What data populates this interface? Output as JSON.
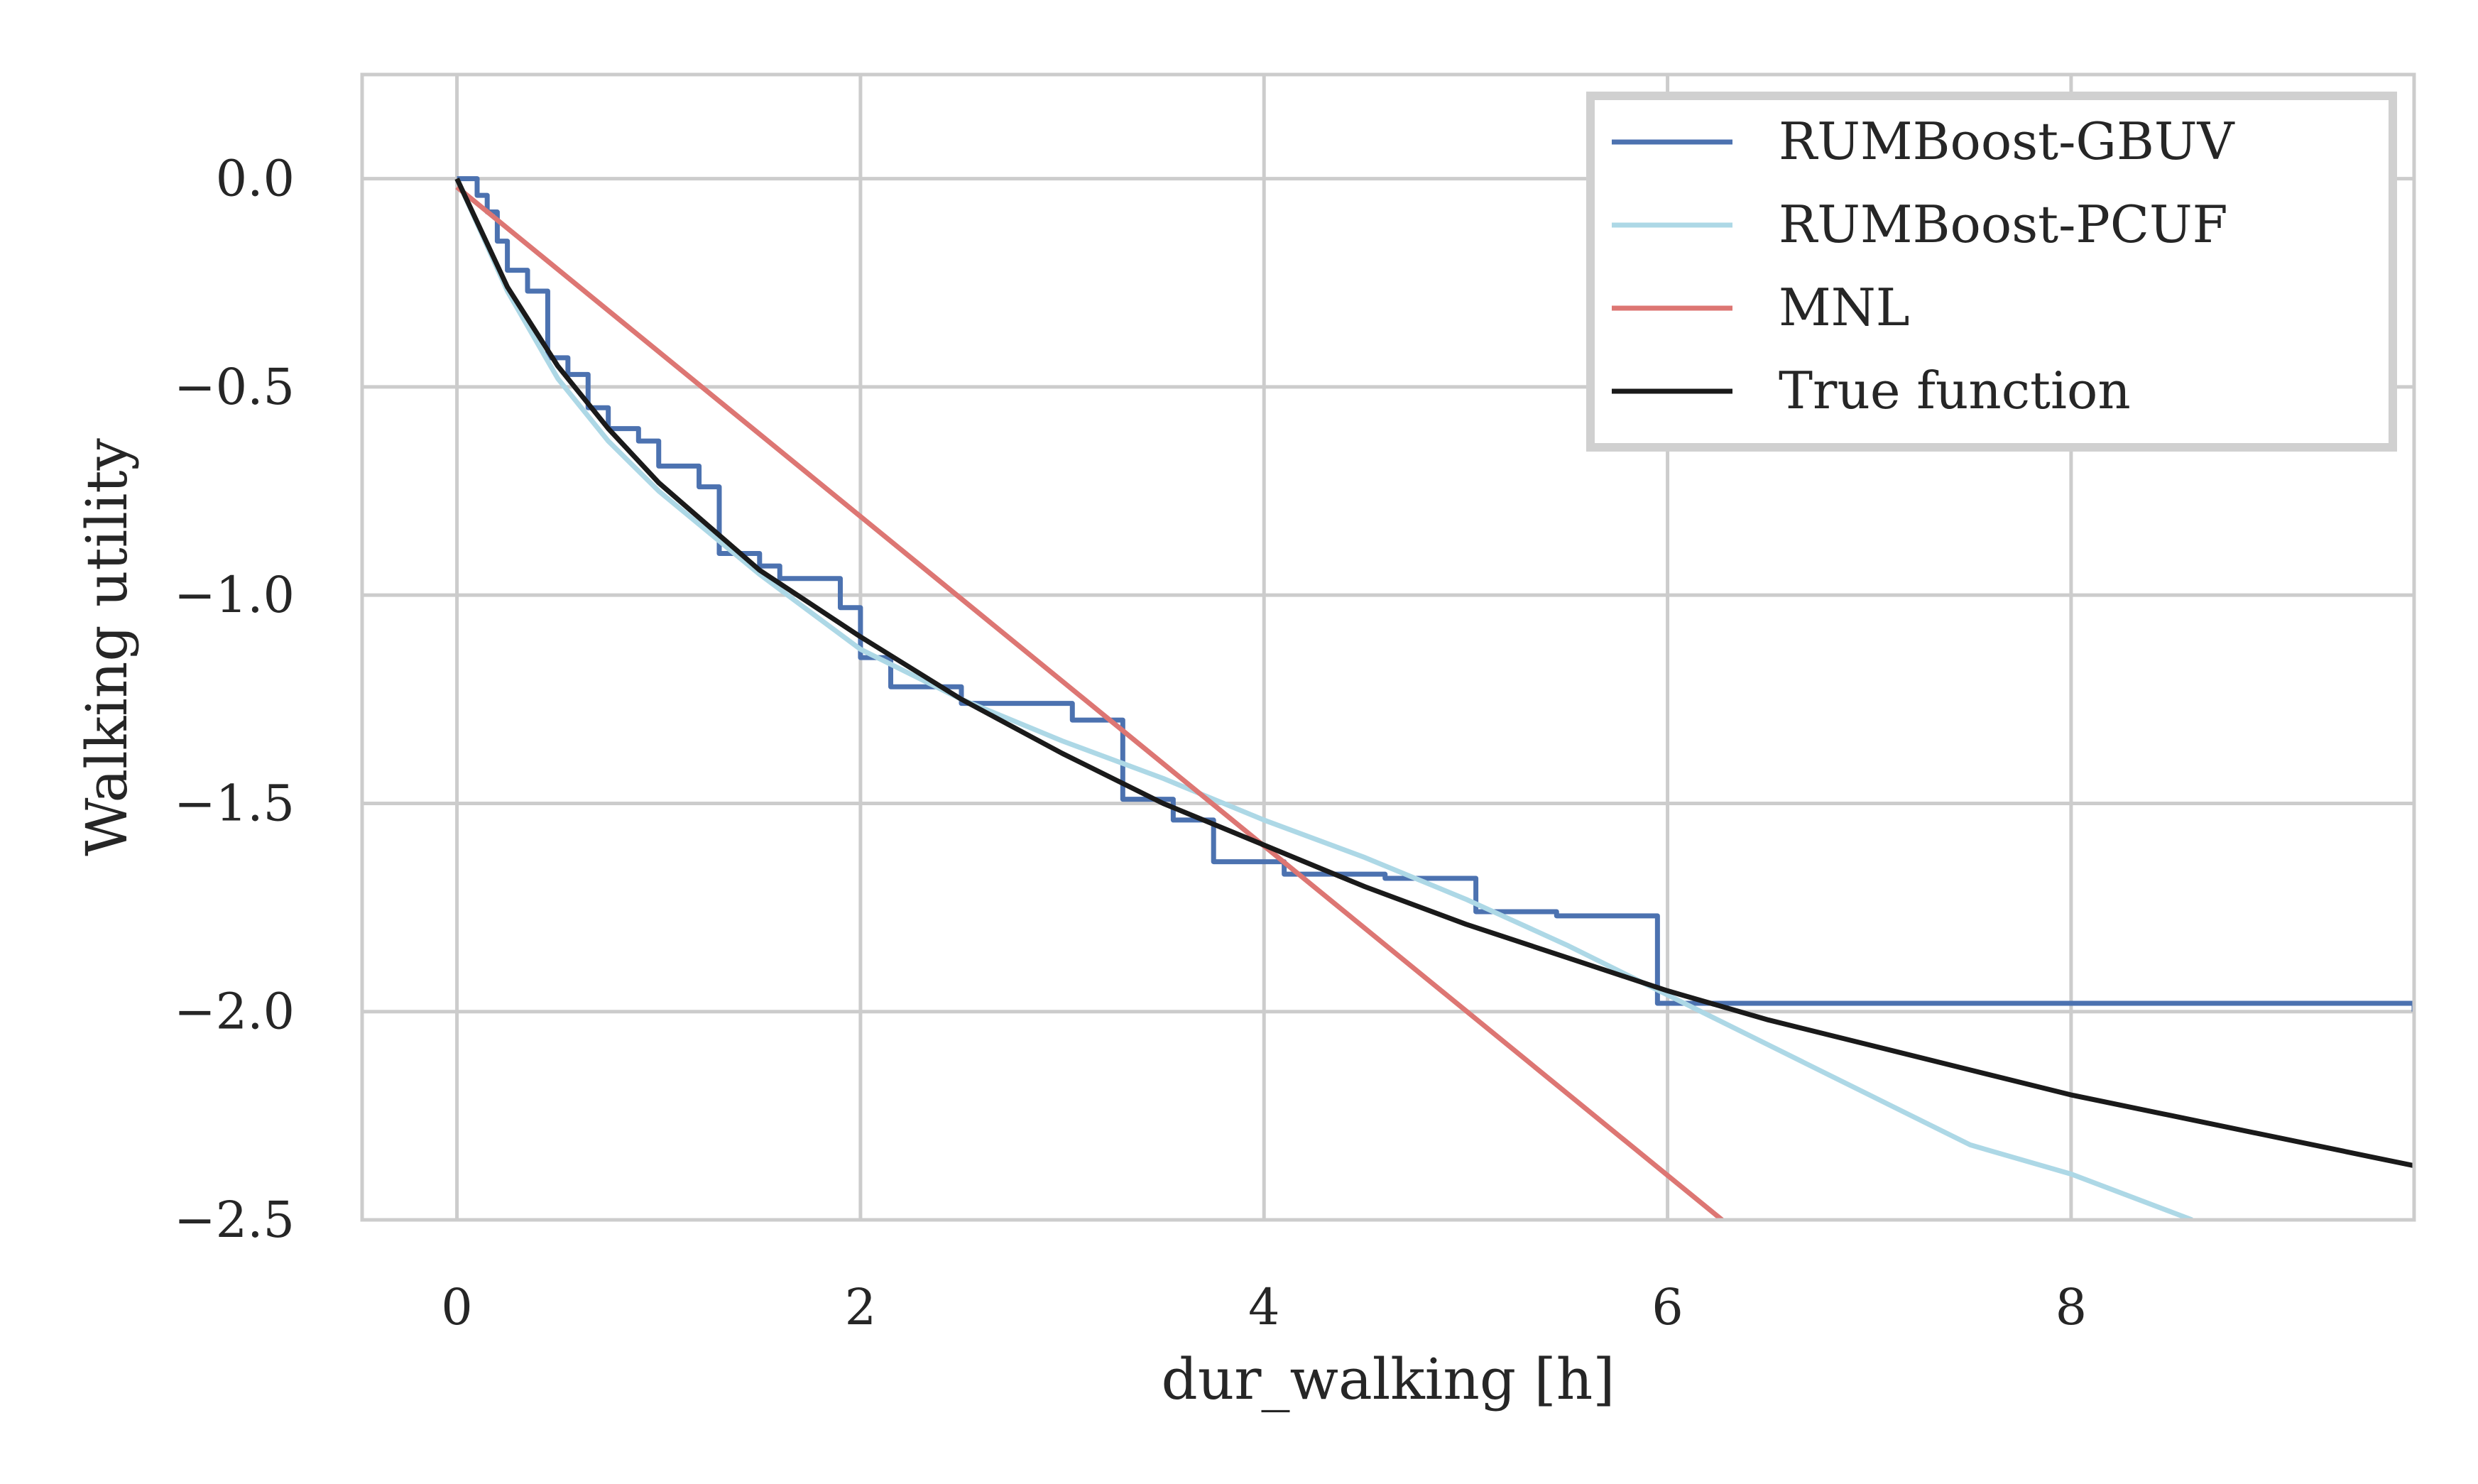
{
  "chart_data": {
    "type": "line",
    "title": "",
    "xlabel": "dur_walking [h]",
    "ylabel": "Walking utility",
    "xlim": [
      -0.47,
      9.7
    ],
    "ylim": [
      -2.5,
      0.25
    ],
    "x_ticks": [
      0,
      2,
      4,
      6,
      8
    ],
    "x_tick_labels": [
      "0",
      "2",
      "4",
      "6",
      "8"
    ],
    "y_ticks": [
      0.0,
      -0.5,
      -1.0,
      -1.5,
      -2.0,
      -2.5
    ],
    "y_tick_labels": [
      "0.0",
      "−0.5",
      "−1.0",
      "−1.5",
      "−2.0",
      "−2.5"
    ],
    "grid": true,
    "legend_position": "top-right",
    "series": [
      {
        "name": "RUMBoost-GBUV",
        "color": "#4c72b0",
        "step": true,
        "x": [
          0.0,
          0.1,
          0.15,
          0.2,
          0.25,
          0.35,
          0.45,
          0.55,
          0.65,
          0.75,
          0.9,
          1.0,
          1.2,
          1.3,
          1.5,
          1.6,
          1.9,
          2.0,
          2.15,
          2.5,
          3.05,
          3.3,
          3.55,
          3.75,
          4.1,
          4.6,
          5.05,
          5.45,
          5.95,
          9.7
        ],
        "y": [
          0.0,
          -0.04,
          -0.08,
          -0.15,
          -0.22,
          -0.27,
          -0.43,
          -0.47,
          -0.55,
          -0.6,
          -0.63,
          -0.69,
          -0.74,
          -0.9,
          -0.93,
          -0.96,
          -1.03,
          -1.15,
          -1.22,
          -1.26,
          -1.3,
          -1.49,
          -1.54,
          -1.64,
          -1.67,
          -1.68,
          -1.76,
          -1.77,
          -1.98,
          -2.0
        ]
      },
      {
        "name": "RUMBoost-PCUF",
        "color": "#add8e6",
        "step": false,
        "x": [
          0.0,
          0.25,
          0.5,
          0.75,
          1.0,
          1.5,
          2.0,
          2.5,
          3.0,
          3.5,
          4.0,
          4.5,
          5.0,
          5.5,
          6.0,
          6.5,
          7.0,
          7.5,
          8.0,
          8.6
        ],
        "y": [
          0.0,
          -0.27,
          -0.48,
          -0.63,
          -0.75,
          -0.95,
          -1.13,
          -1.25,
          -1.35,
          -1.44,
          -1.54,
          -1.63,
          -1.73,
          -1.84,
          -1.96,
          -2.08,
          -2.2,
          -2.32,
          -2.39,
          -2.5
        ]
      },
      {
        "name": "MNL",
        "color": "#dd7673",
        "step": false,
        "x": [
          0.0,
          6.27
        ],
        "y": [
          -0.02,
          -2.5
        ]
      },
      {
        "name": "True function",
        "color": "#1a1a1a",
        "step": false,
        "x": [
          0.0,
          0.25,
          0.5,
          0.75,
          1.0,
          1.5,
          2.0,
          2.5,
          3.0,
          3.5,
          4.0,
          4.5,
          5.0,
          5.5,
          6.0,
          6.5,
          7.0,
          7.5,
          8.0,
          8.5,
          9.0,
          9.5,
          9.7
        ],
        "y": [
          0.0,
          -0.26,
          -0.45,
          -0.6,
          -0.73,
          -0.94,
          -1.1,
          -1.25,
          -1.38,
          -1.5,
          -1.6,
          -1.7,
          -1.79,
          -1.87,
          -1.95,
          -2.02,
          -2.08,
          -2.14,
          -2.2,
          -2.25,
          -2.3,
          -2.35,
          -2.37
        ]
      }
    ]
  }
}
